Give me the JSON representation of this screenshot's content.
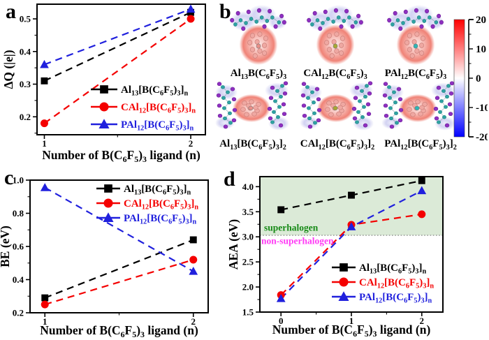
{
  "panels": [
    {
      "id": "a",
      "label": "a"
    },
    {
      "id": "b",
      "label": "b"
    },
    {
      "id": "c",
      "label": "c"
    },
    {
      "id": "d",
      "label": "d"
    }
  ],
  "colors": {
    "black_series": "#000000",
    "red_series": "#f40000",
    "blue_series": "#2020dd",
    "superhalogen_band": "#dbead7",
    "superhalogen_text": "#178a17",
    "non_superhalogen_text": "#ff3df5",
    "threshold_line": "#777777"
  },
  "chart_data": [
    {
      "id": "a",
      "type": "line",
      "title": "",
      "xlabel": "Number of B(C_{6}F_{5})_{3} ligand (n)",
      "ylabel": "ΔQ (|e|)",
      "x": [
        1,
        2
      ],
      "xticks": [
        "1",
        "2"
      ],
      "xlim": [
        0.95,
        2.1
      ],
      "yticks": [
        "0.2",
        "0.3",
        "0.4",
        "0.5"
      ],
      "ylim": [
        0.145,
        0.545
      ],
      "grid": false,
      "line_style": "dashed",
      "legend_position": "inside-lower-right",
      "series": [
        {
          "name": "Al_{13}[B(C_{6}F_{5})_{3}]_{n}",
          "color": "#000000",
          "marker": "square",
          "values": [
            0.31,
            0.52
          ]
        },
        {
          "name": "CAl_{12}[B(C_{6}F_{5})_{3}]_{n}",
          "color": "#f40000",
          "marker": "circle",
          "values": [
            0.18,
            0.5
          ]
        },
        {
          "name": "PAl_{12}[B(C_{6}F_{5})_{3}]_{n}",
          "color": "#2020dd",
          "marker": "triangle",
          "values": [
            0.36,
            0.53
          ]
        }
      ]
    },
    {
      "id": "c",
      "type": "line",
      "title": "",
      "xlabel": "Number of B(C_{6}F_{5})_{3} ligand (n)",
      "ylabel": "BE (eV)",
      "x": [
        1,
        2
      ],
      "xticks": [
        "1",
        "2"
      ],
      "xlim": [
        0.9,
        2.1
      ],
      "yticks": [
        "0.2",
        "0.4",
        "0.6",
        "0.8",
        "1.0"
      ],
      "ylim": [
        0.2,
        1.0
      ],
      "grid": false,
      "line_style": "dashed",
      "legend_position": "inside-upper-right",
      "series": [
        {
          "name": "Al_{13}[B(C_{6}F_{5})_{3}]_{n}",
          "color": "#000000",
          "marker": "square",
          "values": [
            0.29,
            0.64
          ]
        },
        {
          "name": "CAl_{12}[B(C_{6}F_{5})_{3}]_{n}",
          "color": "#f40000",
          "marker": "circle",
          "values": [
            0.25,
            0.52
          ]
        },
        {
          "name": "PAl_{12}[B(C_{6}F_{5})_{3}]_{n}",
          "color": "#2020dd",
          "marker": "triangle",
          "values": [
            0.955,
            0.45
          ]
        }
      ]
    },
    {
      "id": "d",
      "type": "line",
      "title": "",
      "xlabel": "Number of B(C_{6}F_{5})_{3} ligand (n)",
      "ylabel": "AEA (eV)",
      "x": [
        0,
        1,
        2
      ],
      "xticks": [
        "0",
        "1",
        "2"
      ],
      "xlim": [
        -0.3,
        2.3
      ],
      "yticks": [
        "1.5",
        "2.0",
        "2.5",
        "3.0",
        "3.5",
        "4.0"
      ],
      "ylim": [
        1.5,
        4.2
      ],
      "grid": false,
      "line_style": "dashed",
      "legend_position": "inside-lower-right",
      "band": {
        "from": 3.03,
        "to": 4.2,
        "color": "#dbead7"
      },
      "hline": {
        "y": 3.03,
        "style": "dotted",
        "color": "#777777"
      },
      "annotations": [
        {
          "text": "superhalogen",
          "color": "#178a17",
          "x": -0.24,
          "y": 3.12
        },
        {
          "text": "non-superhalogen",
          "color": "#ff3df5",
          "x": -0.28,
          "y": 2.86
        }
      ],
      "series": [
        {
          "name": "Al_{13}[B(C_{6}F_{5})_{3}]_{n}",
          "color": "#000000",
          "marker": "square",
          "values": [
            3.54,
            3.83,
            4.12
          ]
        },
        {
          "name": "CAl_{12}[B(C_{6}F_{5})_{3}]_{n}",
          "color": "#f40000",
          "marker": "circle",
          "values": [
            1.84,
            3.24,
            3.45
          ]
        },
        {
          "name": "PAl_{12}[B(C_{6}F_{5})_{3}]_{n}",
          "color": "#2020dd",
          "marker": "triangle",
          "values": [
            1.77,
            3.2,
            3.92
          ]
        }
      ]
    }
  ],
  "panel_b": {
    "molecules": [
      {
        "label": "Al_{13}B(C_{6}F_{5})_{3}",
        "variant": "single",
        "center_atom_color": "#e98f88"
      },
      {
        "label": "CAl_{12}B(C_{6}F_{5})_{3}",
        "variant": "single",
        "center_atom_color": "#a8a832"
      },
      {
        "label": "PAl_{12}B(C_{6}F_{5})_{3}",
        "variant": "single",
        "center_atom_color": "#2fb5b5"
      },
      {
        "label": "Al_{13}[B(C_{6}F_{5})_{3}]_{2}",
        "variant": "double",
        "center_atom_color": "#e98f88"
      },
      {
        "label": "CAl_{12}[B(C_{6}F_{5})_{3}]_{2}",
        "variant": "double",
        "center_atom_color": "#a8a832"
      },
      {
        "label": "PAl_{12}[B(C_{6}F_{5})_{3}]_{2}",
        "variant": "double",
        "center_atom_color": "#2fb5b5"
      }
    ],
    "colorbar": {
      "max": 20,
      "min": -20,
      "ticks": [
        "20",
        "10",
        "0",
        "-10",
        "-20"
      ],
      "minor_step": 5,
      "top_color": "#ff0000",
      "mid_color": "#ffffff",
      "bottom_color": "#0000ff"
    }
  }
}
